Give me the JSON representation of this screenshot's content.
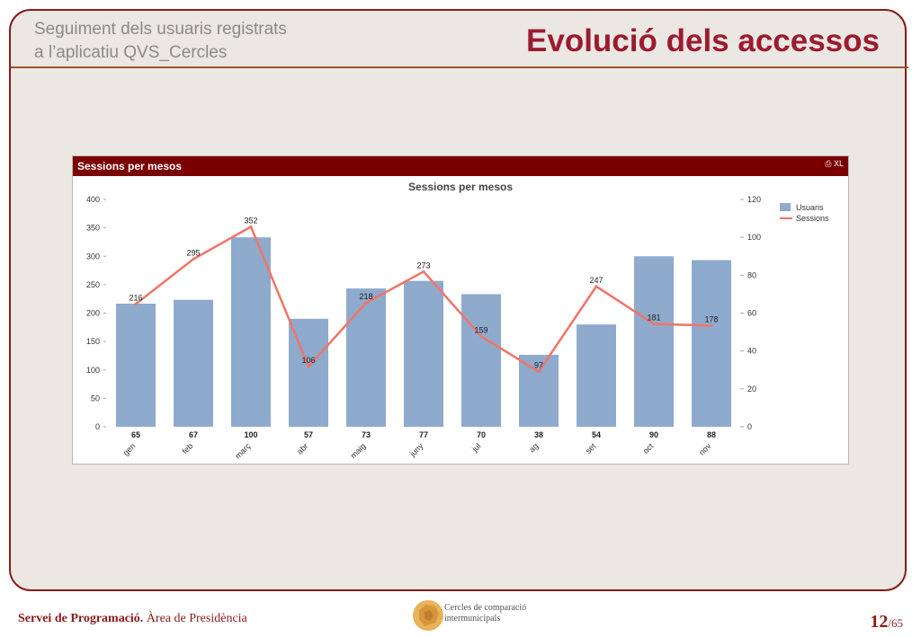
{
  "header": {
    "subtitle_line1": "Seguiment dels usuaris registrats",
    "subtitle_line2": "a l’aplicatiu QVS_Cercles",
    "title": "Evolució dels accessos"
  },
  "panel": {
    "caption": "Sessions per mesos",
    "icons_label": "XL"
  },
  "chart_data": {
    "type": "bar",
    "title": "Sessions per mesos",
    "categories": [
      "gen",
      "feb",
      "març",
      "abr",
      "maig",
      "juny",
      "jul",
      "ag",
      "set",
      "oct",
      "nov"
    ],
    "series": [
      {
        "name": "Usuaris",
        "type": "bar",
        "axis": "right",
        "values": [
          65,
          67,
          100,
          57,
          73,
          77,
          70,
          38,
          54,
          90,
          88
        ],
        "color": "#8eaacc"
      },
      {
        "name": "Sessions",
        "type": "line",
        "axis": "left",
        "values": [
          216,
          295,
          352,
          106,
          218,
          273,
          159,
          97,
          247,
          181,
          178
        ],
        "color": "#f07468"
      }
    ],
    "left_axis": {
      "ylim": [
        0,
        400
      ],
      "ticks": [
        0,
        50,
        100,
        150,
        200,
        250,
        300,
        350,
        400
      ]
    },
    "right_axis": {
      "ylim": [
        0,
        120
      ],
      "ticks": [
        0,
        20,
        40,
        60,
        80,
        100,
        120
      ]
    },
    "legend_position": "top-right",
    "grid": false
  },
  "footer": {
    "org_bold": "Servei de Programació.",
    "org_rest": " Àrea de Presidència",
    "logo_line1": "Cercles de comparació",
    "logo_line2": "intermunicipals",
    "page_current": "12",
    "page_total": "/65"
  }
}
